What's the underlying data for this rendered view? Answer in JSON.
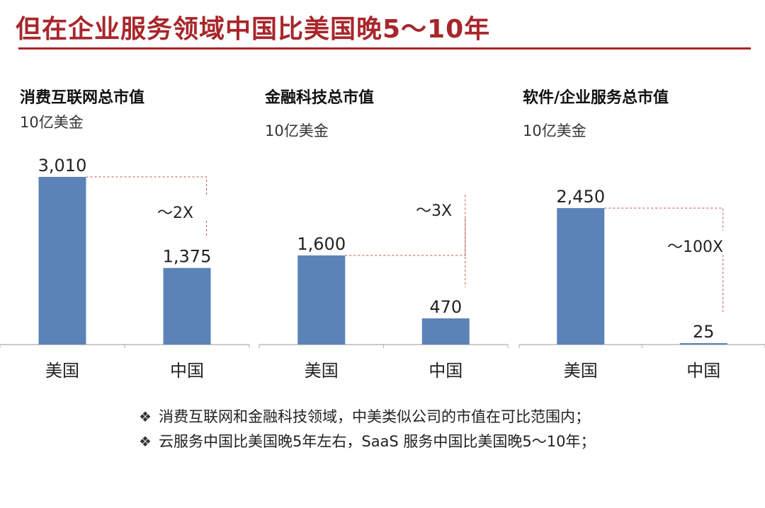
{
  "title": "但在企业服务领域中国比美国晚5～10年",
  "chart_data": [
    {
      "type": "bar",
      "title": "消费互联网总市值",
      "unit": "10亿美金",
      "categories": [
        "美国",
        "中国"
      ],
      "values": [
        3010,
        1375
      ],
      "value_labels": [
        "3,010",
        "1,375"
      ],
      "ratio_label": "～2X",
      "color": "#5b83b8"
    },
    {
      "type": "bar",
      "title": "金融科技总市值",
      "unit": "10亿美金",
      "categories": [
        "美国",
        "中国"
      ],
      "values": [
        1600,
        470
      ],
      "value_labels": [
        "1,600",
        "470"
      ],
      "ratio_label": "～3X",
      "color": "#5b83b8"
    },
    {
      "type": "bar",
      "title": "软件/企业服务总市值",
      "unit": "10亿美金",
      "categories": [
        "美国",
        "中国"
      ],
      "values": [
        2450,
        25
      ],
      "value_labels": [
        "2,450",
        "25"
      ],
      "ratio_label": "～100X",
      "color": "#5b83b8"
    }
  ],
  "bullets": [
    "消费互联网和金融科技领域，中美类似公司的市值在可比范围内；",
    "云服务中国比美国晚5年左右，SaaS 服务中国比美国晚5～10年；"
  ],
  "bullet_icon": "diamond-bullet-icon",
  "colors": {
    "title": "#a8262b",
    "bar": "#5b83b8",
    "connector": "#c0504d"
  }
}
